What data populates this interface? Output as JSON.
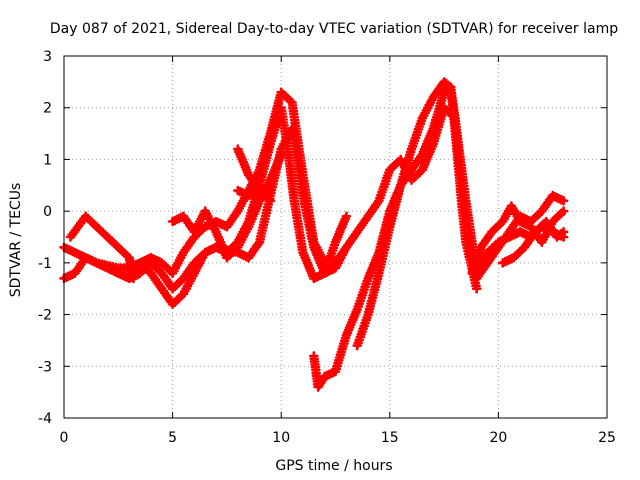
{
  "chart_data": {
    "type": "scatter",
    "title": "Day 087 of 2021, Sidereal Day-to-day VTEC variation (SDTVAR) for receiver lamp",
    "xlabel": "GPS time / hours",
    "ylabel": "SDTVAR / TECUs",
    "xlim": [
      0,
      25
    ],
    "ylim": [
      -4,
      3
    ],
    "xticks": [
      "0",
      "5",
      "10",
      "15",
      "20",
      "25"
    ],
    "yticks": [
      "-4",
      "-3",
      "-2",
      "-1",
      "0",
      "1",
      "2",
      "3"
    ],
    "grid": true,
    "marker": "+",
    "color": "#ff0000",
    "series": [
      {
        "x": [
          0.0,
          0.5,
          1.0,
          1.5,
          2.0,
          2.5,
          3.0,
          3.5,
          4.0,
          4.5,
          5.0,
          5.5,
          6.0,
          6.5,
          7.0,
          7.5,
          8.0,
          8.5,
          9.0,
          9.5,
          10.0,
          10.3,
          10.6,
          11.0,
          11.5,
          12.0,
          12.5,
          13.0
        ],
        "y": [
          -0.7,
          -0.8,
          -0.9,
          -1.0,
          -1.05,
          -1.1,
          -1.1,
          -1.0,
          -1.2,
          -1.5,
          -1.8,
          -1.6,
          -1.2,
          -0.8,
          -0.7,
          -0.8,
          -0.6,
          -0.2,
          0.5,
          1.3,
          2.0,
          1.2,
          0.2,
          -0.8,
          -1.3,
          -1.2,
          -0.6,
          -0.1
        ]
      },
      {
        "x": [
          0.0,
          0.5,
          1.0,
          1.5,
          2.0,
          2.5,
          3.0,
          3.5,
          4.0,
          4.5,
          5.0,
          5.5,
          6.0,
          6.5,
          7.0,
          7.5,
          8.0,
          8.5,
          9.0,
          9.5,
          10.0,
          10.5,
          11.0,
          11.5,
          12.0,
          12.5,
          13.0
        ],
        "y": [
          -1.3,
          -1.2,
          -0.9,
          -1.0,
          -1.1,
          -1.2,
          -1.3,
          -1.2,
          -1.0,
          -1.2,
          -1.5,
          -1.3,
          -1.0,
          -0.8,
          -0.7,
          -0.75,
          -0.8,
          -0.9,
          -0.6,
          0.3,
          1.2,
          1.6,
          0.3,
          -0.7,
          -1.2,
          -1.1,
          -0.7
        ]
      },
      {
        "x": [
          0.3,
          1.0,
          1.5,
          2.0,
          2.5,
          3.0,
          3.2,
          3.5,
          4.0,
          4.5,
          5.0,
          5.5,
          6.0,
          6.5,
          7.0,
          7.5,
          8.0,
          8.5,
          9.0,
          9.5,
          10.0,
          10.5,
          11.0,
          11.5,
          12.0
        ],
        "y": [
          -0.5,
          -0.1,
          -0.3,
          -0.5,
          -0.7,
          -0.9,
          -1.3,
          -1.0,
          -0.9,
          -1.0,
          -1.2,
          -0.8,
          -0.5,
          -0.3,
          -0.2,
          -0.3,
          0.0,
          0.4,
          0.8,
          1.5,
          2.3,
          2.1,
          0.7,
          -0.6,
          -1.0
        ]
      },
      {
        "x": [
          5.0,
          5.5,
          6.0,
          6.5,
          7.0,
          7.5,
          8.0,
          8.5,
          9.0,
          9.5,
          10.0
        ],
        "y": [
          -0.2,
          -0.1,
          -0.4,
          0.0,
          -0.4,
          -0.9,
          -0.7,
          -0.3,
          0.2,
          0.6,
          1.1
        ]
      },
      {
        "x": [
          8.0,
          8.5,
          9.0,
          9.5
        ],
        "y": [
          1.2,
          0.7,
          0.4,
          0.2
        ]
      },
      {
        "x": [
          8.0,
          8.5,
          9.0
        ],
        "y": [
          0.4,
          0.3,
          0.4
        ]
      },
      {
        "x": [
          11.5,
          11.7,
          12.0,
          12.5,
          13.0,
          13.5,
          14.0,
          14.5,
          15.0,
          15.5,
          16.0,
          16.5,
          17.0,
          17.5,
          17.8,
          18.0,
          18.3,
          18.5,
          19.0
        ],
        "y": [
          -2.8,
          -3.4,
          -3.2,
          -3.1,
          -2.4,
          -1.9,
          -1.3,
          -0.8,
          0.0,
          0.5,
          0.8,
          1.1,
          1.6,
          2.3,
          2.4,
          1.6,
          0.2,
          -0.6,
          -1.5
        ]
      },
      {
        "x": [
          12.0,
          12.5,
          13.0,
          13.5,
          14.0,
          14.5,
          15.0,
          15.5,
          16.0,
          16.5,
          17.0,
          17.5,
          18.0,
          18.5,
          19.0,
          19.5,
          20.0,
          20.5,
          21.0,
          21.5,
          22.0,
          22.5,
          23.0
        ],
        "y": [
          -1.2,
          -1.0,
          -0.7,
          -0.4,
          -0.1,
          0.2,
          0.8,
          1.0,
          0.6,
          0.8,
          1.3,
          2.0,
          1.8,
          0.2,
          -1.2,
          -0.8,
          -0.6,
          -0.5,
          -0.4,
          -0.5,
          -0.3,
          -0.4,
          -0.5
        ]
      },
      {
        "x": [
          13.5,
          14.0,
          14.5,
          15.0,
          15.5,
          16.0,
          16.5,
          17.0,
          17.5,
          17.8,
          18.0,
          18.3,
          18.6,
          19.0,
          19.5,
          20.0,
          20.5,
          21.0,
          21.5,
          22.0,
          22.5,
          23.0
        ],
        "y": [
          -2.6,
          -2.0,
          -1.2,
          -0.3,
          0.5,
          1.2,
          1.8,
          2.2,
          2.5,
          2.4,
          1.8,
          0.6,
          -0.6,
          -1.3,
          -1.0,
          -0.7,
          -0.4,
          -0.1,
          -0.2,
          0.0,
          0.3,
          0.2
        ]
      },
      {
        "x": [
          18.8,
          19.2,
          19.7,
          20.2,
          20.6,
          21.0,
          21.5,
          22.0,
          22.5,
          23.0
        ],
        "y": [
          -1.2,
          -0.7,
          -0.4,
          -0.2,
          0.1,
          -0.2,
          -0.3,
          -0.6,
          -0.2,
          0.0
        ]
      },
      {
        "x": [
          20.2,
          20.7,
          21.2,
          21.7,
          22.2,
          22.7,
          23.0
        ],
        "y": [
          -1.0,
          -0.9,
          -0.7,
          -0.4,
          -0.2,
          -0.5,
          -0.4
        ]
      }
    ]
  }
}
